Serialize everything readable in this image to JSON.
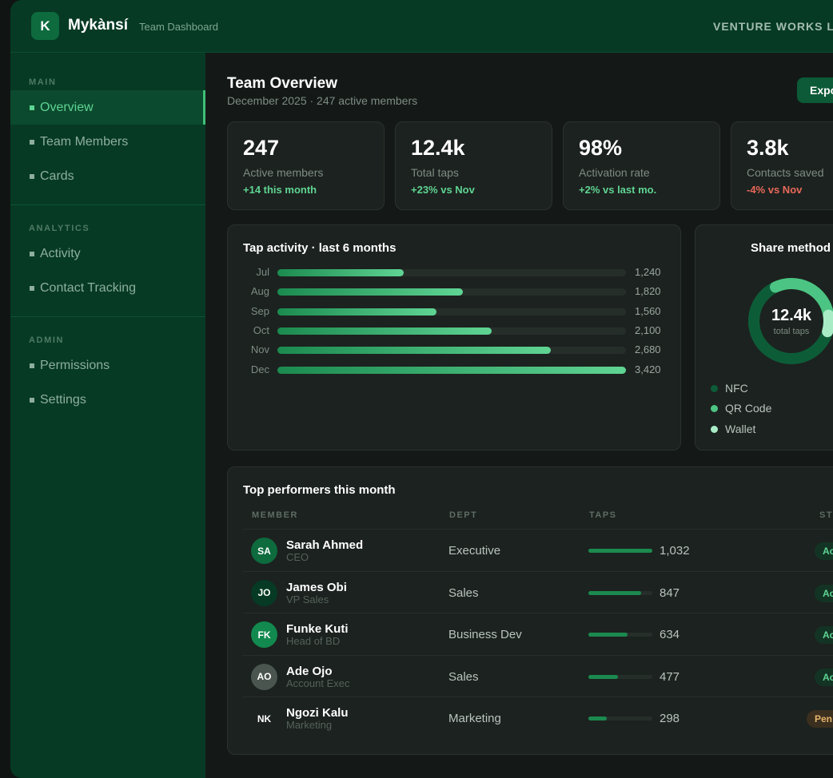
{
  "app": {
    "logo_letter": "K",
    "name": "Mykànsí",
    "subtitle": "Team Dashboard",
    "org": "VENTURE WORKS L"
  },
  "sidebar": {
    "sections": [
      {
        "label": "MAIN",
        "items": [
          {
            "label": "Overview",
            "active": true
          },
          {
            "label": "Team Members"
          },
          {
            "label": "Cards"
          }
        ]
      },
      {
        "label": "ANALYTICS",
        "items": [
          {
            "label": "Activity"
          },
          {
            "label": "Contact Tracking"
          }
        ]
      },
      {
        "label": "ADMIN",
        "items": [
          {
            "label": "Permissions"
          },
          {
            "label": "Settings"
          }
        ]
      }
    ]
  },
  "main": {
    "title": "Team Overview",
    "subtitle": "December 2025 · 247 active members",
    "export_label": "Expo",
    "stats": [
      {
        "value": "247",
        "label": "Active members",
        "delta": "+14 this month",
        "trend": "up"
      },
      {
        "value": "12.4k",
        "label": "Total taps",
        "delta": "+23% vs Nov",
        "trend": "up"
      },
      {
        "value": "98%",
        "label": "Activation rate",
        "delta": "+2% vs last mo.",
        "trend": "up"
      },
      {
        "value": "3.8k",
        "label": "Contacts saved",
        "delta": "-4% vs Nov",
        "trend": "down"
      }
    ],
    "tap_activity": {
      "title": "Tap activity · last 6 months",
      "rows": [
        {
          "month": "Jul",
          "value": 1240,
          "value_label": "1,240"
        },
        {
          "month": "Aug",
          "value": 1820,
          "value_label": "1,820"
        },
        {
          "month": "Sep",
          "value": 1560,
          "value_label": "1,560"
        },
        {
          "month": "Oct",
          "value": 2100,
          "value_label": "2,100"
        },
        {
          "month": "Nov",
          "value": 2680,
          "value_label": "2,680"
        },
        {
          "month": "Dec",
          "value": 3420,
          "value_label": "3,420"
        }
      ]
    },
    "share": {
      "title": "Share method",
      "center_value": "12.4k",
      "center_label": "total taps",
      "legend": [
        {
          "label": "NFC",
          "color": "#0d5c38"
        },
        {
          "label": "QR Code",
          "color": "#4cc483"
        },
        {
          "label": "Wallet",
          "color": "#a8ecc6"
        }
      ]
    },
    "performers": {
      "title": "Top performers this month",
      "headers": {
        "member": "MEMBER",
        "dept": "DEPT",
        "taps": "TAPS",
        "status": "ST"
      },
      "rows": [
        {
          "initials": "SA",
          "name": "Sarah Ahmed",
          "role": "CEO",
          "dept": "Executive",
          "taps": 1032,
          "taps_label": "1,032",
          "status": "Ac",
          "avatar_color": "#0d6b3e"
        },
        {
          "initials": "JO",
          "name": "James Obi",
          "role": "VP Sales",
          "dept": "Sales",
          "taps": 847,
          "taps_label": "847",
          "status": "Ac",
          "avatar_color": "#063a24"
        },
        {
          "initials": "FK",
          "name": "Funke Kuti",
          "role": "Head of BD",
          "dept": "Business Dev",
          "taps": 634,
          "taps_label": "634",
          "status": "Ac",
          "avatar_color": "#128a4f"
        },
        {
          "initials": "AO",
          "name": "Ade Ojo",
          "role": "Account Exec",
          "dept": "Sales",
          "taps": 477,
          "taps_label": "477",
          "status": "Ac",
          "avatar_color": "#4a5550"
        },
        {
          "initials": "NK",
          "name": "Ngozi Kalu",
          "role": "Marketing",
          "dept": "Marketing",
          "taps": 298,
          "taps_label": "298",
          "status": "Pen",
          "avatar_color": "#1c221f"
        }
      ]
    }
  },
  "colors": {
    "accent": "#5fd493",
    "negative": "#e8695a",
    "sidebar_bg": "#063a24"
  }
}
